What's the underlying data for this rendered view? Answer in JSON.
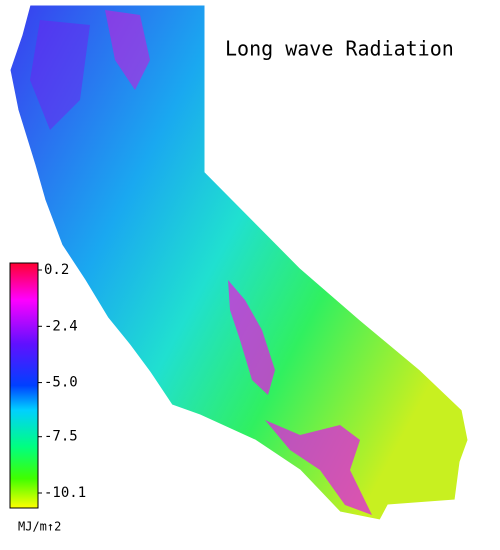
{
  "title": "Long wave Radiation",
  "colorbar": {
    "lim": [
      -10.1,
      0.2
    ],
    "ticks": [
      0.2,
      -2.4,
      {
        "value": -5,
        "label": "-5.0"
      },
      -7.5,
      -10.1
    ],
    "unit": "MJ/m↑2"
  }
}
